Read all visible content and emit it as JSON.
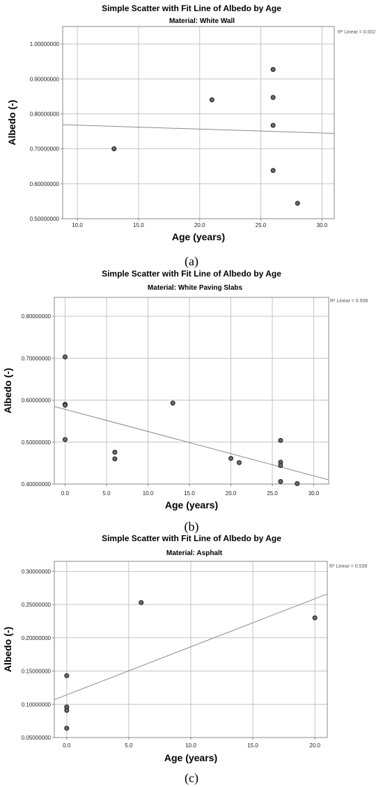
{
  "chart_data": [
    {
      "type": "scatter",
      "title": "Simple Scatter with Fit Line of Albedo by Age",
      "subtitle": "Material: White Wall",
      "xlabel": "Age (years)",
      "ylabel": "Albedo (-)",
      "xlim": [
        8.8,
        31
      ],
      "ylim": [
        0.5,
        1.05
      ],
      "xticks": [
        10,
        15,
        20,
        25,
        30
      ],
      "xtick_labels": [
        "10.0",
        "15.0",
        "20.0",
        "25.0",
        "30.0"
      ],
      "yticks": [
        0.5,
        0.6,
        0.7,
        0.8,
        0.9,
        1.0
      ],
      "ytick_labels": [
        "0.50000000",
        "0.60000000",
        "0.70000000",
        "0.80000000",
        "0.90000000",
        "1.00000000"
      ],
      "grid": true,
      "points": [
        {
          "x": 13,
          "y": 0.7
        },
        {
          "x": 21,
          "y": 0.84
        },
        {
          "x": 26,
          "y": 0.927
        },
        {
          "x": 26,
          "y": 0.847
        },
        {
          "x": 26,
          "y": 0.767
        },
        {
          "x": 26,
          "y": 0.638
        },
        {
          "x": 28,
          "y": 0.544
        }
      ],
      "fit_line": {
        "x": [
          8.8,
          31
        ],
        "y": [
          0.769,
          0.744
        ]
      },
      "r2_label": "R² Linear = 0.002",
      "panel_label": "(a)"
    },
    {
      "type": "scatter",
      "title": "Simple Scatter with Fit Line of Albedo by Age",
      "subtitle": "Material: White Paving Slabs",
      "xlabel": "Age (years)",
      "ylabel": "Albedo (-)",
      "xlim": [
        -1.3,
        31.8
      ],
      "ylim": [
        0.4,
        0.845
      ],
      "xticks": [
        0,
        5,
        10,
        15,
        20,
        25,
        30
      ],
      "xtick_labels": [
        "0.0",
        "5.0",
        "10.0",
        "15.0",
        "20.0",
        "25.0",
        "30.0"
      ],
      "yticks": [
        0.4,
        0.5,
        0.6,
        0.7,
        0.8
      ],
      "ytick_labels": [
        "0.40000000",
        "0.50000000",
        "0.60000000",
        "0.70000000",
        "0.80000000"
      ],
      "grid": true,
      "points": [
        {
          "x": 0,
          "y": 0.703
        },
        {
          "x": 0,
          "y": 0.59
        },
        {
          "x": 0,
          "y": 0.588
        },
        {
          "x": 0,
          "y": 0.506
        },
        {
          "x": 6,
          "y": 0.476
        },
        {
          "x": 6,
          "y": 0.46
        },
        {
          "x": 13,
          "y": 0.593
        },
        {
          "x": 20,
          "y": 0.461
        },
        {
          "x": 21,
          "y": 0.451
        },
        {
          "x": 26,
          "y": 0.504
        },
        {
          "x": 26,
          "y": 0.452
        },
        {
          "x": 26,
          "y": 0.444
        },
        {
          "x": 26,
          "y": 0.406
        },
        {
          "x": 28,
          "y": 0.401
        }
      ],
      "fit_line": {
        "x": [
          -1.3,
          31.8
        ],
        "y": [
          0.585,
          0.41
        ]
      },
      "r2_label": "R² Linear = 0.508",
      "panel_label": "(b)"
    },
    {
      "type": "scatter",
      "title": "Simple Scatter with Fit Line of Albedo by Age",
      "subtitle": "Material: Asphalt",
      "xlabel": "Age (years)",
      "ylabel": "Albedo (-)",
      "xlim": [
        -1.0,
        21.0
      ],
      "ylim": [
        0.05,
        0.315
      ],
      "xticks": [
        0,
        5,
        10,
        15,
        20
      ],
      "xtick_labels": [
        "0.0",
        "5.0",
        "10.0",
        "15.0",
        "20.0"
      ],
      "yticks": [
        0.05,
        0.1,
        0.15,
        0.2,
        0.25,
        0.3
      ],
      "ytick_labels": [
        "0.05000000",
        "0.10000000",
        "0.15000000",
        "0.20000000",
        "0.25000000",
        "0.30000000"
      ],
      "grid": true,
      "points": [
        {
          "x": 0,
          "y": 0.143
        },
        {
          "x": 0,
          "y": 0.096
        },
        {
          "x": 0,
          "y": 0.091
        },
        {
          "x": 0,
          "y": 0.064
        },
        {
          "x": 6,
          "y": 0.253
        },
        {
          "x": 20,
          "y": 0.23
        }
      ],
      "fit_line": {
        "x": [
          -1.0,
          21.0
        ],
        "y": [
          0.107,
          0.266
        ]
      },
      "r2_label": "R² Linear = 0.539",
      "panel_label": "(c)"
    }
  ]
}
